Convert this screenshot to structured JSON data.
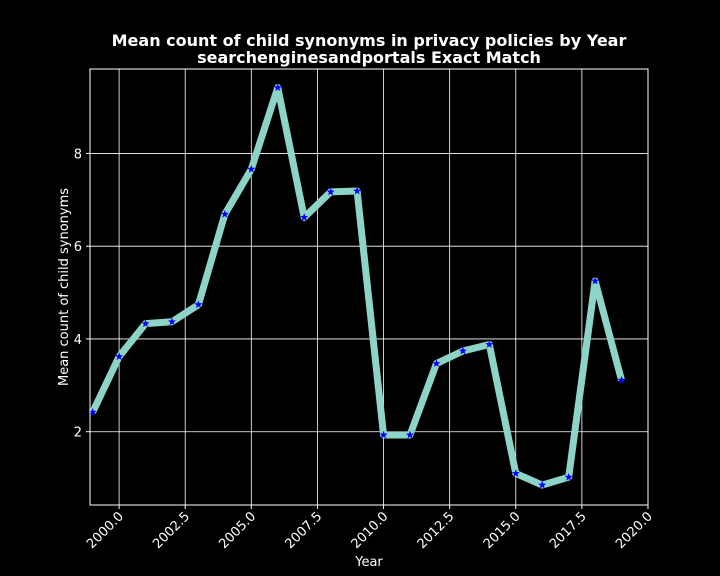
{
  "chart_data": {
    "type": "line",
    "title": "Mean count of child synonyms in privacy policies by Year",
    "subtitle": "searchenginesandportals Exact Match",
    "xlabel": "Year",
    "ylabel": "Mean count of child synonyms",
    "xlim": [
      1998.9,
      2020.0
    ],
    "ylim": [
      0.42,
      9.82
    ],
    "grid": true,
    "x_ticks": [
      2000.0,
      2002.5,
      2005.0,
      2007.5,
      2010.0,
      2012.5,
      2015.0,
      2017.5,
      2020.0
    ],
    "x_tick_labels": [
      "2000.0",
      "2002.5",
      "2005.0",
      "2007.5",
      "2010.0",
      "2012.5",
      "2015.0",
      "2017.5",
      "2020.0"
    ],
    "y_ticks": [
      2,
      4,
      6,
      8
    ],
    "y_tick_labels": [
      "2",
      "4",
      "6",
      "8"
    ],
    "series": [
      {
        "name": "mean count",
        "x": [
          1999,
          2000,
          2001,
          2002,
          2003,
          2004,
          2005,
          2006,
          2007,
          2008,
          2009,
          2010,
          2011,
          2012,
          2013,
          2014,
          2015,
          2016,
          2017,
          2018,
          2019
        ],
        "values": [
          2.42,
          3.62,
          4.33,
          4.37,
          4.74,
          6.69,
          7.66,
          9.42,
          6.62,
          7.17,
          7.19,
          1.93,
          1.93,
          3.47,
          3.74,
          3.88,
          1.1,
          0.85,
          1.02,
          5.25,
          3.11
        ],
        "line_color": "#8dd3c7",
        "marker_color": "#0000ff",
        "marker": "star"
      }
    ]
  }
}
